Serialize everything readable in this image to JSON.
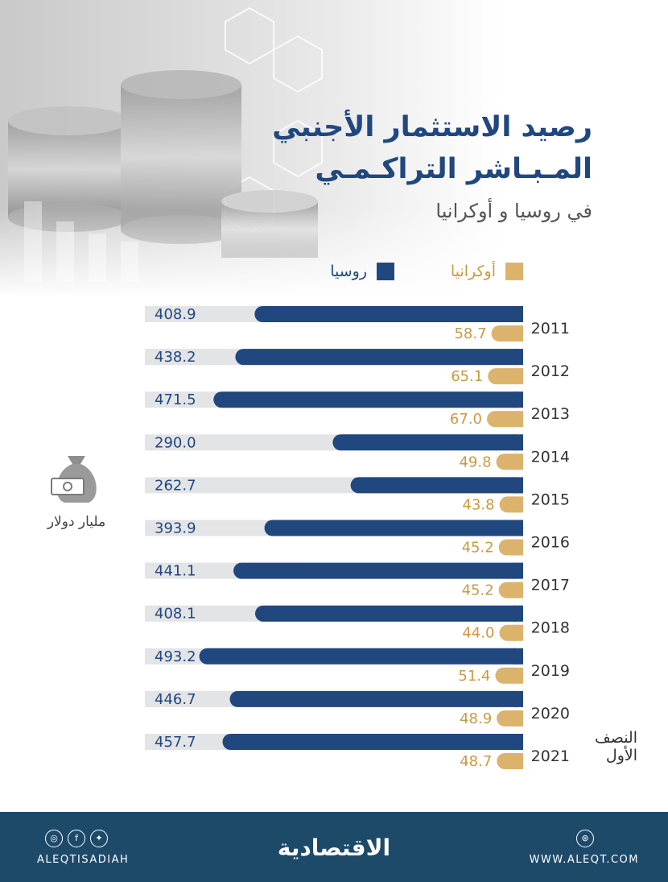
{
  "colors": {
    "russia": "#21477f",
    "ukraine": "#dcb36d",
    "track": "#e3e4e6",
    "footer": "#1e4a6a"
  },
  "title": {
    "line1": "رصيد الاستثمار الأجنبي",
    "line2": "المـبـاشر التراكـمـي",
    "subtitle": "في روسيا و أوكرانيا"
  },
  "legend": {
    "russia": "روسيا",
    "ukraine": "أوكرانيا"
  },
  "unit": {
    "icon": "money-bag-icon",
    "label": "مليار دولار"
  },
  "year_note": "النصف الأول",
  "chart_data": {
    "type": "bar",
    "title": "رصيد الاستثمار الأجنبي المـبـاشر التراكـمـي في روسيا و أوكرانيا",
    "ylabel": "مليار دولار",
    "categories": [
      "2011",
      "2012",
      "2013",
      "2014",
      "2015",
      "2016",
      "2017",
      "2018",
      "2019",
      "2020",
      "2021"
    ],
    "series": [
      {
        "name": "روسيا",
        "values": [
          408.9,
          438.2,
          471.5,
          290.0,
          262.7,
          393.9,
          441.1,
          408.1,
          493.2,
          446.7,
          457.7
        ]
      },
      {
        "name": "أوكرانيا",
        "values": [
          58.7,
          65.1,
          67.0,
          49.8,
          43.8,
          45.2,
          45.2,
          44.0,
          51.4,
          48.9,
          48.7
        ]
      }
    ],
    "ylim": [
      0,
      500
    ]
  },
  "footer": {
    "social_icons": [
      "instagram-icon",
      "facebook-icon",
      "twitter-icon"
    ],
    "handle": "ALEQTISADIAH",
    "logo": "الاقتصادية",
    "web_icon": "globe-icon",
    "url": "WWW.ALEQT.COM"
  }
}
